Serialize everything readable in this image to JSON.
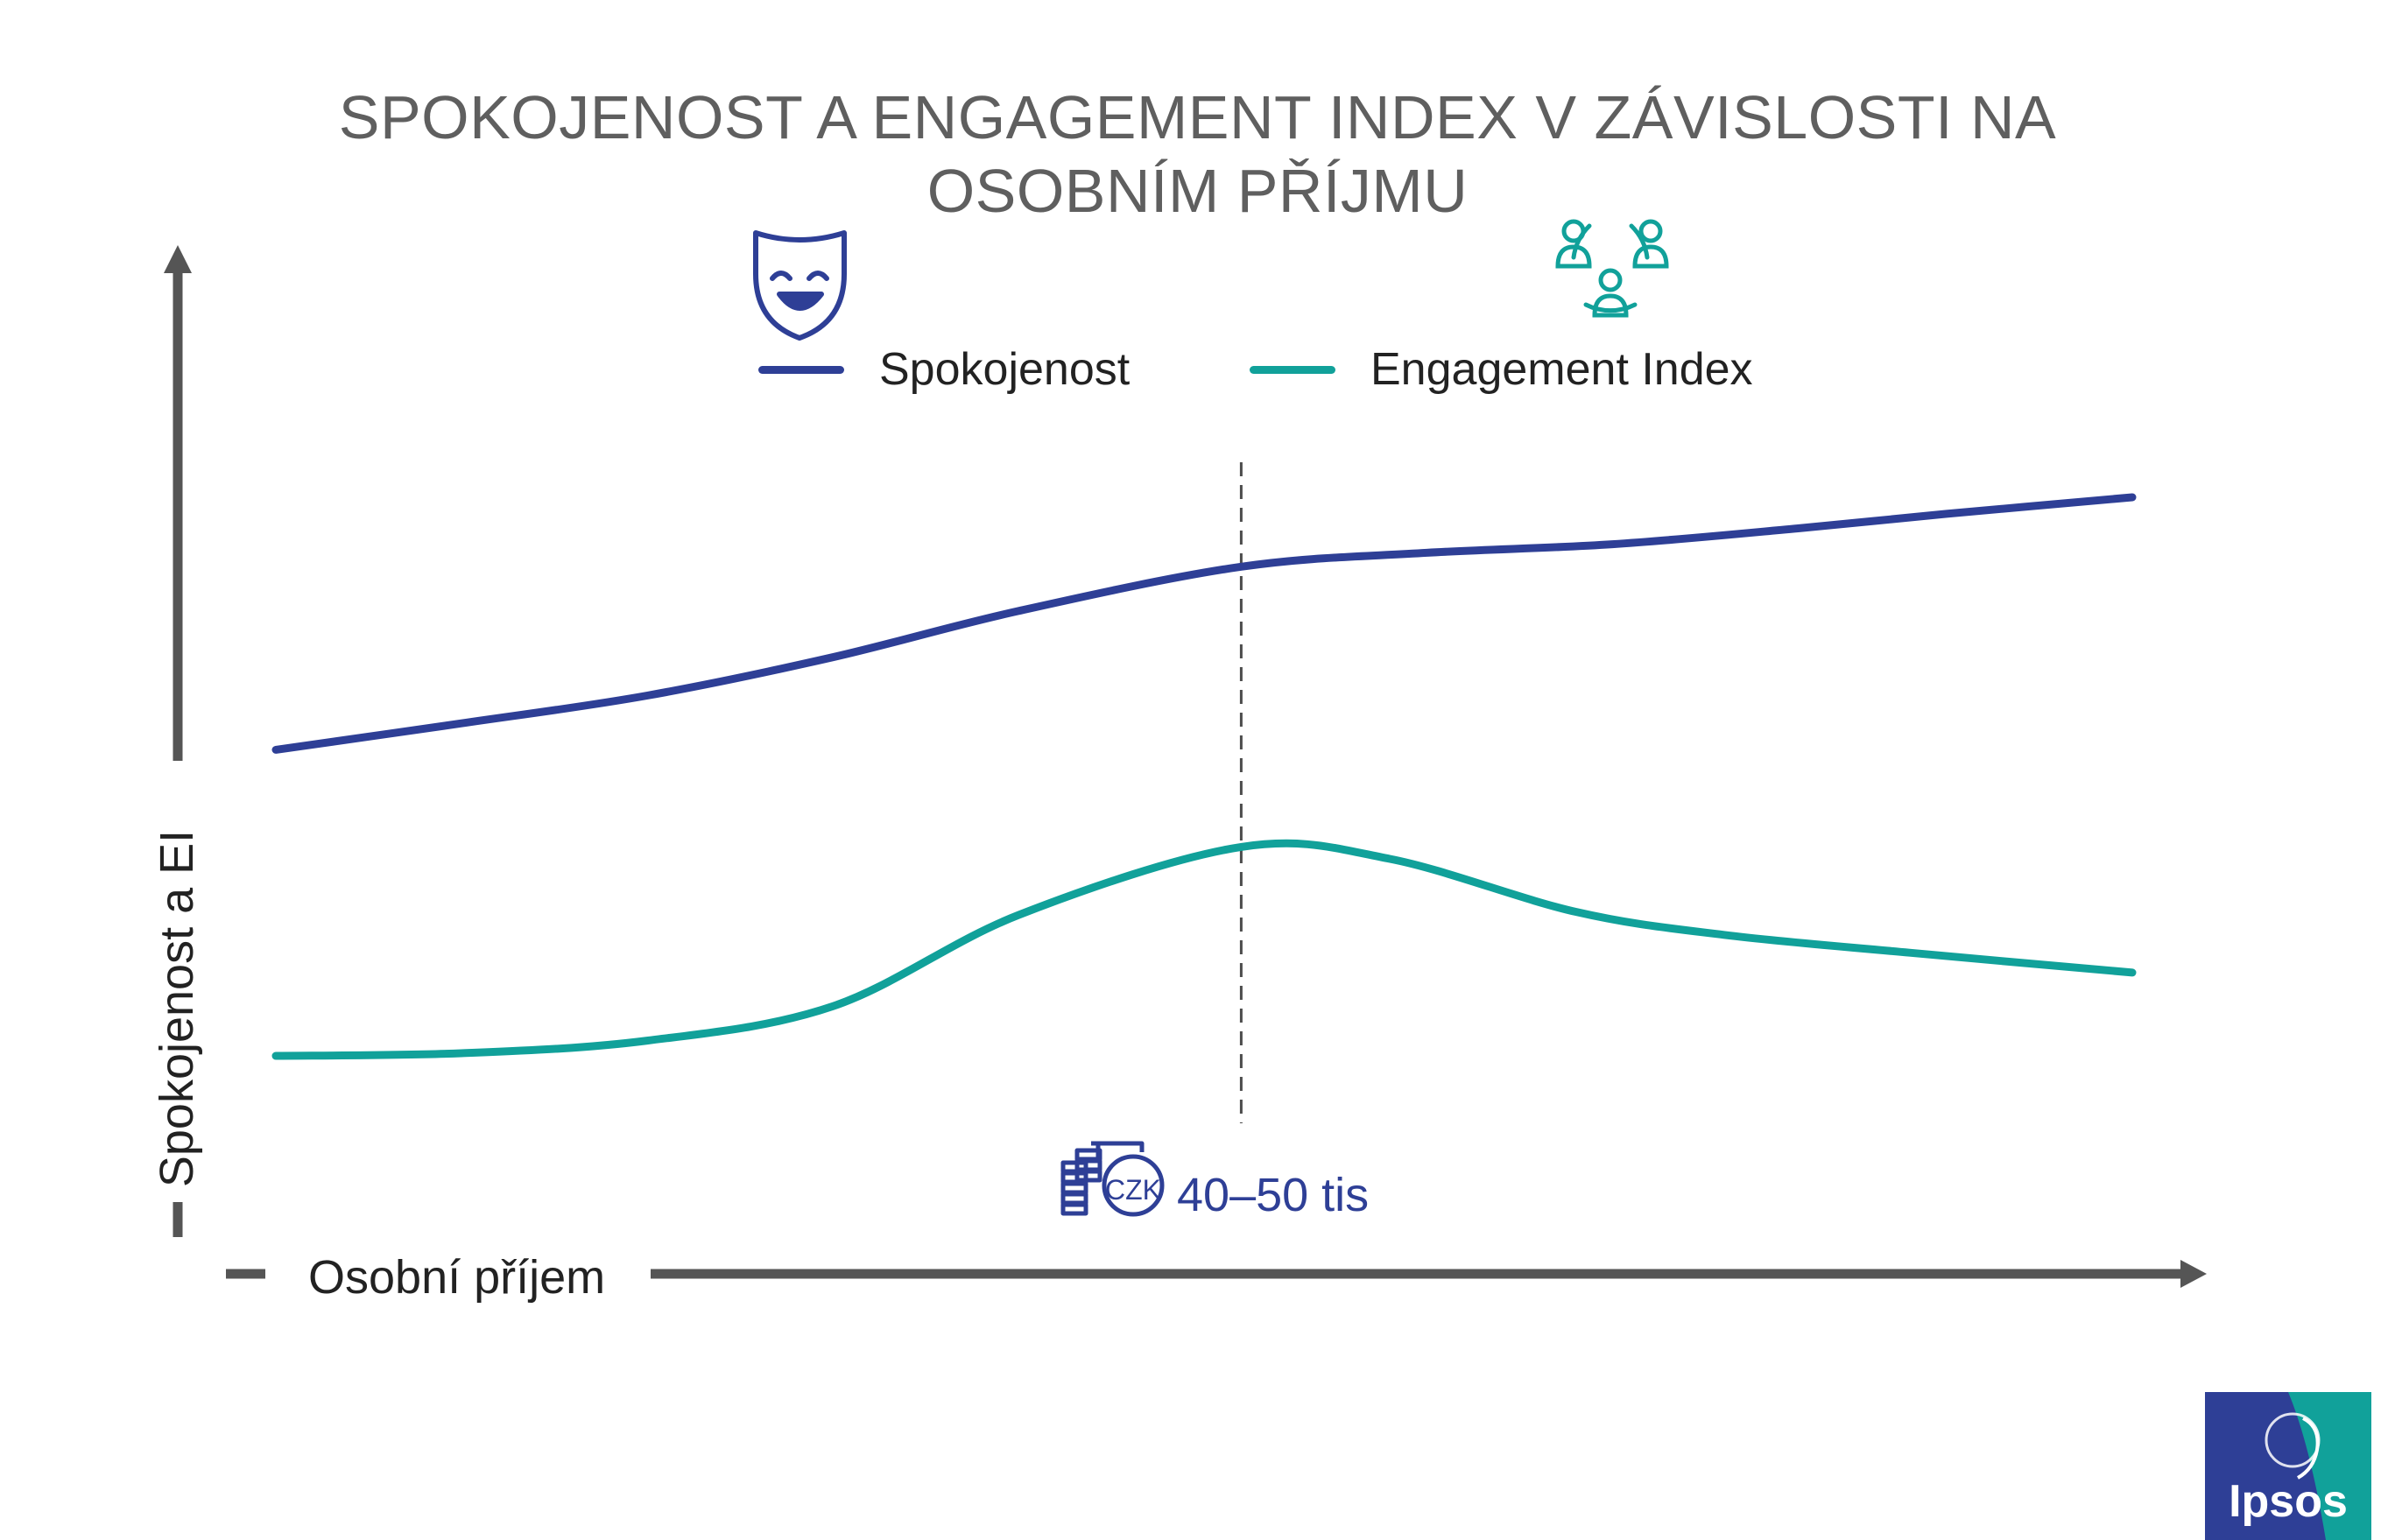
{
  "title_lines": [
    "SPOKOJENOST A ENGAGEMENT INDEX V ZÁVISLOSTI NA",
    "OSOBNÍM PŘÍJMU"
  ],
  "legend": {
    "items": [
      {
        "label": "Spokojenost",
        "color": "#2e3f96",
        "icon": "smiling-mask-icon"
      },
      {
        "label": "Engagement Index",
        "color": "#11a19a",
        "icon": "people-network-icon"
      }
    ]
  },
  "axes": {
    "y_label": "Spokojenost a EI",
    "x_label": "Osobní příjem"
  },
  "threshold": {
    "label": "40–50 tis",
    "currency_badge": "CZK",
    "icon": "money-stack-icon"
  },
  "logo": {
    "text": "Ipsos",
    "colors": [
      "#2e3f96",
      "#11a19a"
    ]
  },
  "chart_data": {
    "type": "line",
    "title": "SPOKOJENOST A ENGAGEMENT INDEX V ZÁVISLOSTI NA OSOBNÍM PŘÍJMU",
    "xlabel": "Osobní příjem",
    "ylabel": "Spokojenost a EI",
    "x_ticks_shown": false,
    "y_ticks_shown": false,
    "xlim": [
      0,
      100
    ],
    "ylim": [
      0,
      100
    ],
    "x_marker": {
      "x": 52,
      "label": "40–50 tis",
      "style": "dashed"
    },
    "grid": false,
    "legend_position": "top-center",
    "series": [
      {
        "name": "Spokojenost",
        "color": "#2e3f96",
        "points": [
          [
            0,
            56.5
          ],
          [
            10,
            60.5
          ],
          [
            20,
            64.7
          ],
          [
            30,
            70.5
          ],
          [
            40,
            77.5
          ],
          [
            52,
            84.2
          ],
          [
            62,
            86.3
          ],
          [
            72,
            87.6
          ],
          [
            82,
            90.0
          ],
          [
            90,
            92.2
          ],
          [
            100,
            94.7
          ]
        ]
      },
      {
        "name": "Engagement Index",
        "color": "#11a19a",
        "points": [
          [
            0,
            10.2
          ],
          [
            10,
            10.6
          ],
          [
            20,
            12.5
          ],
          [
            30,
            17.7
          ],
          [
            40,
            31.5
          ],
          [
            52,
            41.8
          ],
          [
            60,
            40.0
          ],
          [
            70,
            32.0
          ],
          [
            78,
            28.5
          ],
          [
            88,
            25.8
          ],
          [
            100,
            22.8
          ]
        ]
      }
    ]
  }
}
